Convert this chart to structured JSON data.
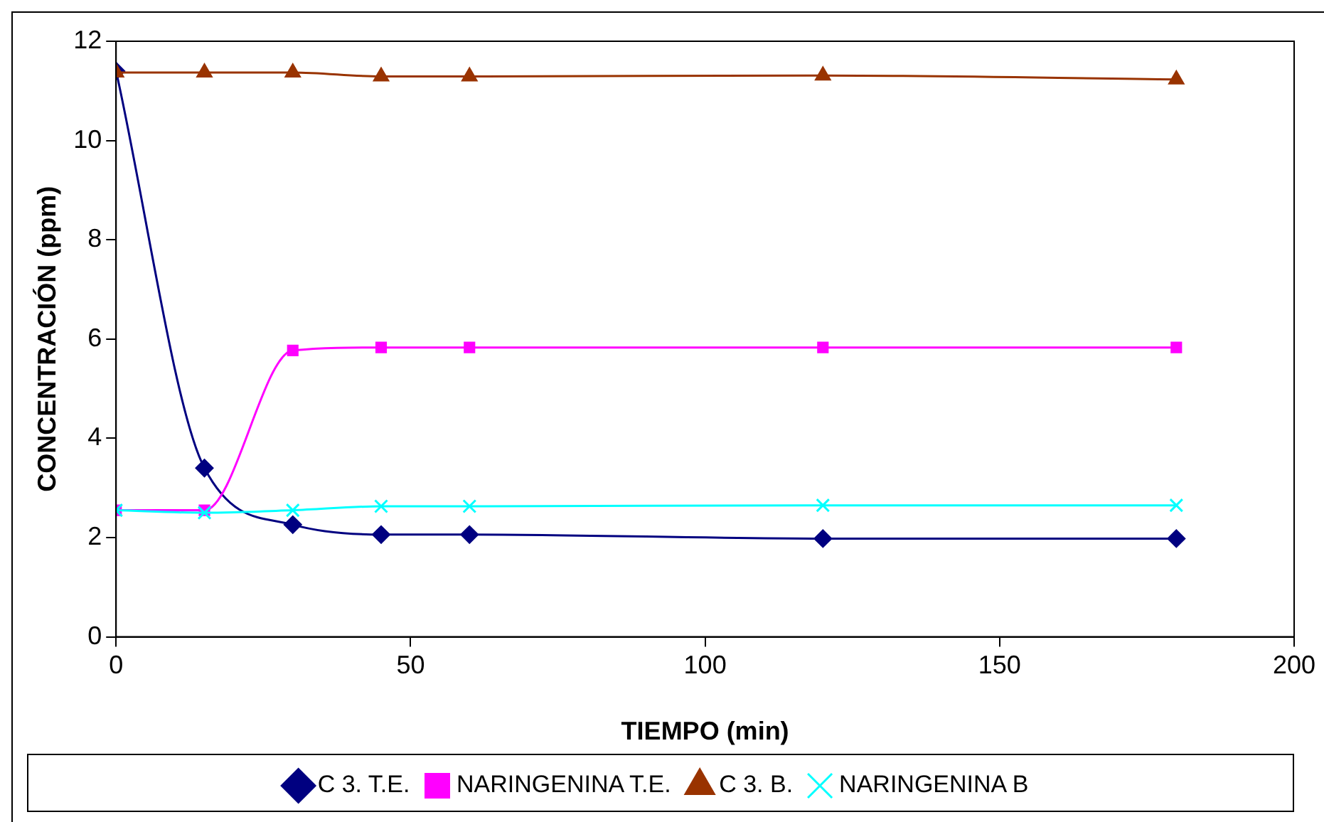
{
  "chart_data": {
    "type": "line",
    "xlabel": "TIEMPO (min)",
    "ylabel": "CONCENTRACIÓN (ppm)",
    "x": [
      0,
      15,
      30,
      45,
      60,
      120,
      180
    ],
    "xlim": [
      0,
      200
    ],
    "xticks": [
      0,
      50,
      100,
      150,
      200
    ],
    "ylim": [
      0,
      12
    ],
    "yticks": [
      0,
      2,
      4,
      6,
      8,
      10,
      12
    ],
    "grid": false,
    "legend": "bottom",
    "series": [
      {
        "name": "C 3. T.E.",
        "color": "#000080",
        "marker": "diamond",
        "values": [
          11.4,
          3.4,
          2.26,
          2.06,
          2.06,
          1.98,
          1.98
        ]
      },
      {
        "name": "NARINGENINA T.E.",
        "color": "#ff00ff",
        "marker": "square",
        "values": [
          2.55,
          2.55,
          5.77,
          5.83,
          5.83,
          5.83,
          5.83
        ]
      },
      {
        "name": "C 3. B.",
        "color": "#993300",
        "marker": "triangle",
        "values": [
          11.37,
          11.37,
          11.37,
          11.29,
          11.29,
          11.31,
          11.23
        ]
      },
      {
        "name": "NARINGENINA B",
        "color": "#00ffff",
        "marker": "cross",
        "values": [
          2.55,
          2.5,
          2.55,
          2.63,
          2.63,
          2.65,
          2.65
        ]
      }
    ]
  }
}
